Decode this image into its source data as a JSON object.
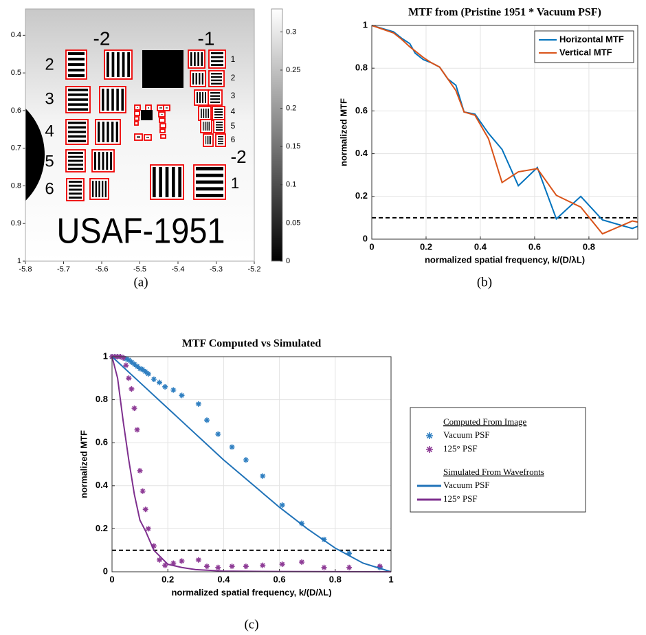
{
  "chart_data": [
    {
      "type": "image",
      "caption": "(a)",
      "xlim": [
        -5.8,
        -5.2
      ],
      "xticks": [
        -5.8,
        -5.7,
        -5.6,
        -5.5,
        -5.4,
        -5.3,
        -5.2
      ],
      "ylim": [
        0.33,
        1
      ],
      "yticks": [
        0.4,
        0.5,
        0.6,
        0.7,
        0.8,
        0.9,
        1
      ],
      "y_reversed": true,
      "colormap": "gray",
      "clim": [
        0,
        0.33
      ],
      "cticks": [
        0,
        0.05,
        0.1,
        0.15,
        0.2,
        0.25,
        0.3
      ],
      "annotations": [
        "-2",
        "-1",
        "2",
        "3",
        "4",
        "5",
        "6",
        "1",
        "2",
        "3",
        "4",
        "5",
        "6",
        "-2",
        "1",
        "USAF-1951"
      ]
    },
    {
      "type": "line",
      "caption": "(b)",
      "title": "MTF from (Pristine 1951 * Vacuum PSF)",
      "xlabel": "normalized spatial frequency,  k/(D/λL)",
      "ylabel": "normalized MTF",
      "xlim": [
        0,
        0.98
      ],
      "xticks": [
        0,
        0.2,
        0.4,
        0.6,
        0.8
      ],
      "ylim": [
        0,
        1
      ],
      "yticks": [
        0,
        0.2,
        0.4,
        0.6,
        0.8,
        1
      ],
      "grid": true,
      "hline": 0.1,
      "legend": "upper right",
      "series": [
        {
          "name": "Horizontal MTF",
          "color": "#0072bd",
          "style": "line",
          "x": [
            0,
            0.08,
            0.11,
            0.14,
            0.16,
            0.19,
            0.22,
            0.25,
            0.28,
            0.31,
            0.34,
            0.38,
            0.43,
            0.48,
            0.54,
            0.61,
            0.68,
            0.77,
            0.85,
            0.96,
            0.98
          ],
          "values": [
            1,
            0.97,
            0.94,
            0.915,
            0.87,
            0.84,
            0.825,
            0.805,
            0.75,
            0.72,
            0.595,
            0.585,
            0.495,
            0.42,
            0.25,
            0.335,
            0.095,
            0.2,
            0.09,
            0.05,
            0.06
          ]
        },
        {
          "name": "Vertical MTF",
          "color": "#d95319",
          "style": "line",
          "x": [
            0,
            0.08,
            0.11,
            0.14,
            0.16,
            0.19,
            0.22,
            0.25,
            0.28,
            0.31,
            0.34,
            0.38,
            0.43,
            0.48,
            0.54,
            0.61,
            0.68,
            0.77,
            0.85,
            0.96,
            0.98
          ],
          "values": [
            1,
            0.965,
            0.935,
            0.9,
            0.88,
            0.85,
            0.825,
            0.805,
            0.75,
            0.695,
            0.595,
            0.58,
            0.47,
            0.265,
            0.315,
            0.33,
            0.205,
            0.15,
            0.025,
            0.085,
            0.08
          ]
        }
      ]
    },
    {
      "type": "line",
      "caption": "(c)",
      "title": "MTF Computed vs Simulated",
      "xlabel": "normalized spatial frequency,  k/(D/λL)",
      "ylabel": "normalized MTF",
      "xlim": [
        0,
        1
      ],
      "xticks": [
        0,
        0.2,
        0.4,
        0.6,
        0.8,
        1
      ],
      "ylim": [
        0,
        1
      ],
      "yticks": [
        0,
        0.2,
        0.4,
        0.6,
        0.8,
        1
      ],
      "grid": true,
      "hline": 0.1,
      "legend": "outside right",
      "legend_titles": [
        "Computed From Image",
        "Simulated From Wavefronts"
      ],
      "series": [
        {
          "name": "Vacuum PSF",
          "color": "#2f7fc1",
          "style": "markers",
          "x": [
            0,
            0.01,
            0.02,
            0.03,
            0.04,
            0.05,
            0.06,
            0.07,
            0.08,
            0.09,
            0.1,
            0.11,
            0.12,
            0.13,
            0.15,
            0.17,
            0.19,
            0.22,
            0.25,
            0.31,
            0.34,
            0.38,
            0.43,
            0.48,
            0.54,
            0.61,
            0.68,
            0.76,
            0.85,
            0.96
          ],
          "values": [
            1,
            1,
            1,
            1,
            0.995,
            0.99,
            0.985,
            0.975,
            0.965,
            0.955,
            0.945,
            0.94,
            0.93,
            0.92,
            0.895,
            0.88,
            0.86,
            0.845,
            0.82,
            0.78,
            0.705,
            0.64,
            0.58,
            0.52,
            0.445,
            0.31,
            0.225,
            0.15,
            0.085,
            0.02
          ]
        },
        {
          "name": "125° PSF",
          "color": "#8e3c96",
          "style": "markers",
          "x": [
            0,
            0.01,
            0.02,
            0.03,
            0.04,
            0.05,
            0.06,
            0.07,
            0.08,
            0.09,
            0.1,
            0.11,
            0.12,
            0.13,
            0.15,
            0.17,
            0.19,
            0.22,
            0.25,
            0.31,
            0.34,
            0.38,
            0.43,
            0.48,
            0.54,
            0.61,
            0.68,
            0.76,
            0.85,
            0.96
          ],
          "values": [
            1,
            1,
            1,
            1,
            0.995,
            0.96,
            0.9,
            0.85,
            0.76,
            0.66,
            0.47,
            0.375,
            0.29,
            0.2,
            0.12,
            0.055,
            0.03,
            0.04,
            0.05,
            0.055,
            0.025,
            0.02,
            0.025,
            0.025,
            0.03,
            0.035,
            0.045,
            0.02,
            0.02,
            0.025
          ]
        },
        {
          "name": "Vacuum PSF",
          "color": "#1f72b8",
          "style": "line",
          "x": [
            0,
            0.1,
            0.2,
            0.3,
            0.4,
            0.5,
            0.6,
            0.7,
            0.8,
            0.9,
            0.95,
            1
          ],
          "values": [
            1,
            0.88,
            0.76,
            0.64,
            0.52,
            0.41,
            0.3,
            0.2,
            0.11,
            0.04,
            0.02,
            0
          ]
        },
        {
          "name": "125° PSF",
          "color": "#7e2f8e",
          "style": "line",
          "x": [
            0,
            0.02,
            0.04,
            0.06,
            0.08,
            0.1,
            0.12,
            0.15,
            0.2,
            0.25,
            0.3,
            0.4,
            0.6,
            1
          ],
          "values": [
            1,
            0.9,
            0.7,
            0.52,
            0.36,
            0.24,
            0.19,
            0.1,
            0.035,
            0.02,
            0.01,
            0.003,
            0.001,
            0
          ]
        }
      ]
    }
  ]
}
